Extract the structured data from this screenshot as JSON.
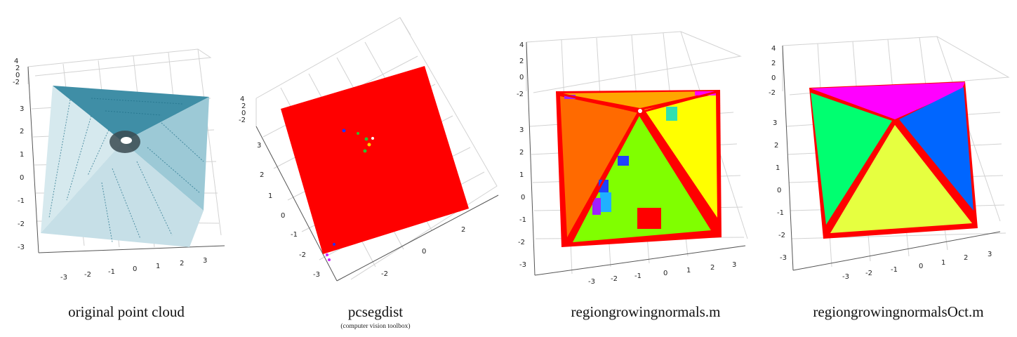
{
  "panels": [
    {
      "caption": "original point cloud",
      "subcaption": "",
      "z_ticks": [
        "4",
        "2",
        "0",
        "-2"
      ],
      "y_ticks": [
        "3",
        "2",
        "1",
        "0",
        "-1",
        "-2",
        "-3"
      ],
      "x_ticks": [
        "-3",
        "-2",
        "-1",
        "0",
        "1",
        "2",
        "3"
      ],
      "colors": {
        "light": "#d6e9ee",
        "mid": "#9cc9d6",
        "dark": "#3f8ea6",
        "darker": "#1f6f88",
        "center": "#3a4a50"
      }
    },
    {
      "caption": "pcsegdist",
      "subcaption": "(computer vision toolbox)",
      "z_ticks": [
        "4",
        "2",
        "0",
        "-2"
      ],
      "y_ticks": [
        "3",
        "2",
        "1",
        "0",
        "-1",
        "-2",
        "-3"
      ],
      "x_ticks": [
        "2",
        "0",
        "-2"
      ],
      "colors": {
        "main": "#ff0000",
        "speck_blue": "#2030ff",
        "speck_green": "#30c030",
        "speck_yellow": "#ffd000",
        "speck_magenta": "#d020ff"
      }
    },
    {
      "caption": "regiongrowingnormals.m",
      "subcaption": "",
      "z_ticks": [
        "4",
        "2",
        "0",
        "-2"
      ],
      "y_ticks": [
        "3",
        "2",
        "1",
        "0",
        "-1",
        "-2",
        "-3"
      ],
      "x_ticks": [
        "-3",
        "-2",
        "-1",
        "0",
        "1",
        "2",
        "3"
      ],
      "colors": {
        "left": "#ff6a00",
        "top": "#ffa500",
        "right": "#ffff00",
        "bottom": "#80ff00",
        "edge": "#ff0000",
        "blue": "#2040ff",
        "cyan": "#20b0ff",
        "teal": "#30e0b0",
        "violet": "#a020ff",
        "magenta": "#ff00ff"
      }
    },
    {
      "caption": "regiongrowingnormalsOct.m",
      "subcaption": "",
      "z_ticks": [
        "4",
        "2",
        "0",
        "-2"
      ],
      "y_ticks": [
        "3",
        "2",
        "1",
        "0",
        "-1",
        "-2",
        "-3"
      ],
      "x_ticks": [
        "-3",
        "-2",
        "-1",
        "0",
        "1",
        "2",
        "3"
      ],
      "colors": {
        "top": "#ff00ff",
        "left": "#00ff70",
        "right": "#0066ff",
        "bottom": "#e6ff40",
        "edge": "#ff0000"
      }
    }
  ]
}
